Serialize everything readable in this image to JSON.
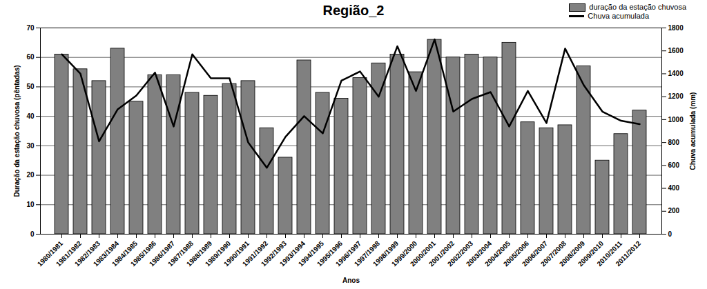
{
  "chart_data": {
    "type": "bar",
    "title": "Região_2",
    "x_label": "Anos",
    "y_label": "Duração da estação chuvosa (pêntadas)",
    "y2_label": "Chuva acumulada (mm)",
    "categories": [
      "1980/1981",
      "1981/1982",
      "1982/1983",
      "1983/1984",
      "1984/1985",
      "1985/1986",
      "1986/1987",
      "1987/1988",
      "1988/1989",
      "1989/1990",
      "1990/1991",
      "1991/1992",
      "1992/1993",
      "1993/1994",
      "1994/1995",
      "1995/1996",
      "1996/1997",
      "1997/1998",
      "1998/1999",
      "1999/2000",
      "2000/2001",
      "2001/2002",
      "2002/2003",
      "2003/2004",
      "2004/2005",
      "2005/2006",
      "2006/2007",
      "2007/2008",
      "2008/2009",
      "2009/2010",
      "2010/2011",
      "2011/2012"
    ],
    "series": [
      {
        "name": "duração da estação chuvosa",
        "type": "bar",
        "color": "#808080",
        "values": [
          61,
          56,
          52,
          63,
          45,
          54,
          54,
          48,
          47,
          51,
          52,
          36,
          26,
          59,
          48,
          46,
          53,
          58,
          61,
          55,
          66,
          60,
          61,
          60,
          65,
          38,
          36,
          37,
          57,
          25,
          34,
          42
        ]
      },
      {
        "name": "Chuva acumulada",
        "type": "line",
        "axis": "y2",
        "color": "#000000",
        "values": [
          1570,
          1400,
          810,
          1090,
          1210,
          1410,
          940,
          1570,
          1360,
          1360,
          800,
          580,
          850,
          1030,
          880,
          1340,
          1420,
          1200,
          1640,
          1250,
          1700,
          1070,
          1180,
          1240,
          940,
          1250,
          970,
          1620,
          1300,
          1070,
          990,
          960
        ]
      }
    ],
    "ylim": [
      0,
      70
    ],
    "yticks": [
      0,
      10,
      20,
      30,
      40,
      50,
      60,
      70
    ],
    "y2lim": [
      0,
      1800
    ],
    "y2ticks": [
      0,
      200,
      400,
      600,
      800,
      1000,
      1200,
      1400,
      1600,
      1800
    ],
    "grid": true,
    "legend": "top-right"
  }
}
